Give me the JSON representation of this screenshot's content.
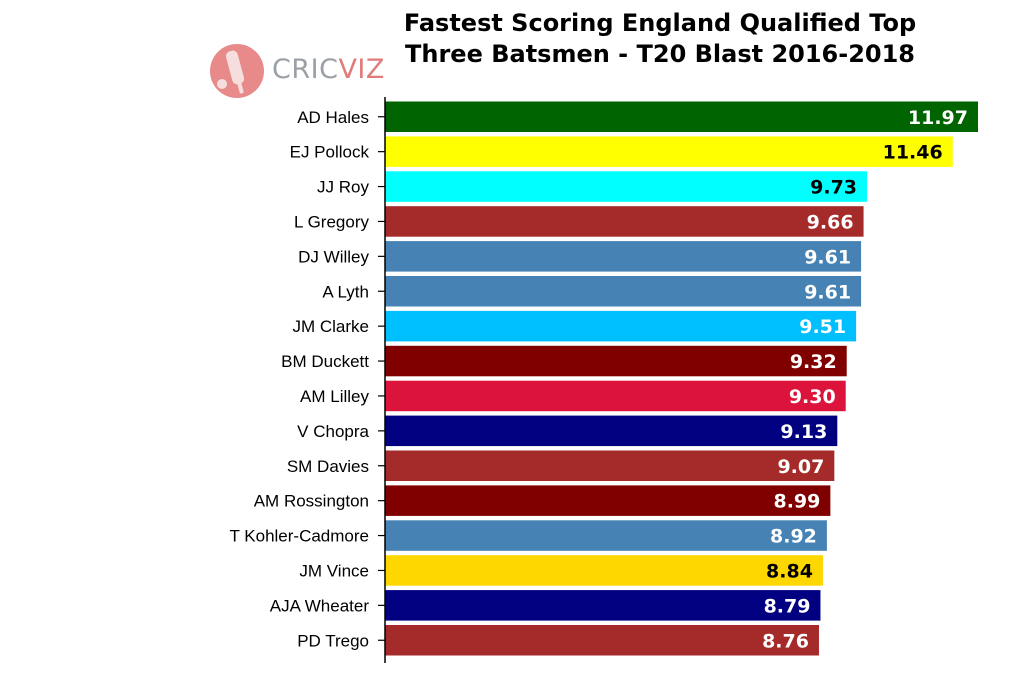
{
  "chart_data": {
    "type": "bar",
    "orientation": "horizontal",
    "title_lines": [
      "Fastest Scoring England Qualified Top",
      "Three Batsmen - T20 Blast 2016-2018"
    ],
    "categories": [
      "AD Hales",
      "EJ Pollock",
      "JJ Roy",
      "L Gregory",
      "DJ Willey",
      "A Lyth",
      "JM Clarke",
      "BM Duckett",
      "AM Lilley",
      "V Chopra",
      "SM Davies",
      "AM Rossington",
      "T Kohler-Cadmore",
      "JM Vince",
      "AJA Wheater",
      "PD Trego"
    ],
    "values": [
      11.97,
      11.46,
      9.73,
      9.66,
      9.61,
      9.61,
      9.51,
      9.32,
      9.3,
      9.13,
      9.07,
      8.99,
      8.92,
      8.84,
      8.79,
      8.76
    ],
    "value_labels": [
      "11.97",
      "11.46",
      "9.73",
      "9.66",
      "9.61",
      "9.61",
      "9.51",
      "9.32",
      "9.30",
      "9.13",
      "9.07",
      "8.99",
      "8.92",
      "8.84",
      "8.79",
      "8.76"
    ],
    "bar_colors": [
      "#006400",
      "#ffff00",
      "#00ffff",
      "#a52a2a",
      "#4682b4",
      "#4682b4",
      "#00bfff",
      "#800000",
      "#dc143c",
      "#000080",
      "#a52a2a",
      "#800000",
      "#4682b4",
      "#ffd700",
      "#000080",
      "#a52a2a"
    ],
    "label_colors": [
      "#ffffff",
      "#000000",
      "#000000",
      "#ffffff",
      "#ffffff",
      "#ffffff",
      "#ffffff",
      "#ffffff",
      "#ffffff",
      "#ffffff",
      "#ffffff",
      "#ffffff",
      "#ffffff",
      "#000000",
      "#ffffff",
      "#ffffff"
    ],
    "xlim": [
      0,
      11.97
    ],
    "grid": false,
    "legend": "none"
  },
  "logo": {
    "text_left": "CRIC",
    "text_right": "VIZ",
    "icon": "cricket-bat-ball-icon"
  }
}
